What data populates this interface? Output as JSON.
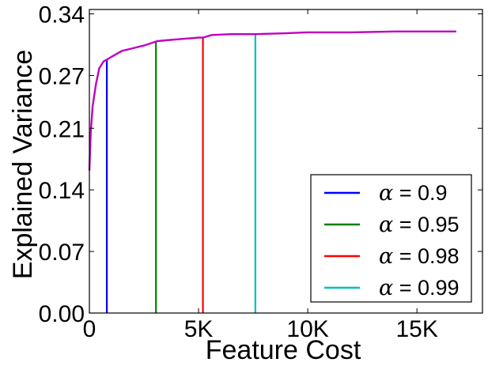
{
  "chart_data": {
    "type": "line",
    "xlabel": "Feature Cost",
    "ylabel": "Explained Variance",
    "xlim": [
      0,
      18000
    ],
    "ylim": [
      0,
      0.345
    ],
    "xticks": [
      0,
      5000,
      10000,
      15000
    ],
    "xtick_labels": [
      "0",
      "5K",
      "10K",
      "15K"
    ],
    "yticks": [
      0.0,
      0.07,
      0.14,
      0.21,
      0.27,
      0.34
    ],
    "ytick_labels": [
      "0.00",
      "0.07",
      "0.14",
      "0.21",
      "0.27",
      "0.34"
    ],
    "grid": false,
    "legend_position": "bottom-right",
    "curve": {
      "color": "#bf00bf",
      "x": [
        0,
        60,
        150,
        300,
        450,
        650,
        800,
        1000,
        1500,
        2000,
        2500,
        3100,
        3500,
        4000,
        4500,
        5000,
        5200,
        5600,
        6500,
        7600,
        9000,
        10000,
        12000,
        14000,
        16800
      ],
      "y": [
        0.162,
        0.205,
        0.235,
        0.26,
        0.278,
        0.286,
        0.288,
        0.291,
        0.298,
        0.301,
        0.304,
        0.309,
        0.31,
        0.311,
        0.312,
        0.313,
        0.313,
        0.316,
        0.317,
        0.317,
        0.318,
        0.319,
        0.319,
        0.32,
        0.32
      ]
    },
    "thresholds": [
      {
        "name": "α = 0.9",
        "symbol": "α",
        "label_value": "= 0.9",
        "x": 800,
        "y": 0.288,
        "color": "#0000ff"
      },
      {
        "name": "α = 0.95",
        "symbol": "α",
        "label_value": "= 0.95",
        "x": 3050,
        "y": 0.309,
        "color": "#008000"
      },
      {
        "name": "α = 0.98",
        "symbol": "α",
        "label_value": "= 0.98",
        "x": 5200,
        "y": 0.313,
        "color": "#ff0000"
      },
      {
        "name": "α = 0.99",
        "symbol": "α",
        "label_value": "= 0.99",
        "x": 7600,
        "y": 0.317,
        "color": "#00bfbf"
      }
    ]
  }
}
